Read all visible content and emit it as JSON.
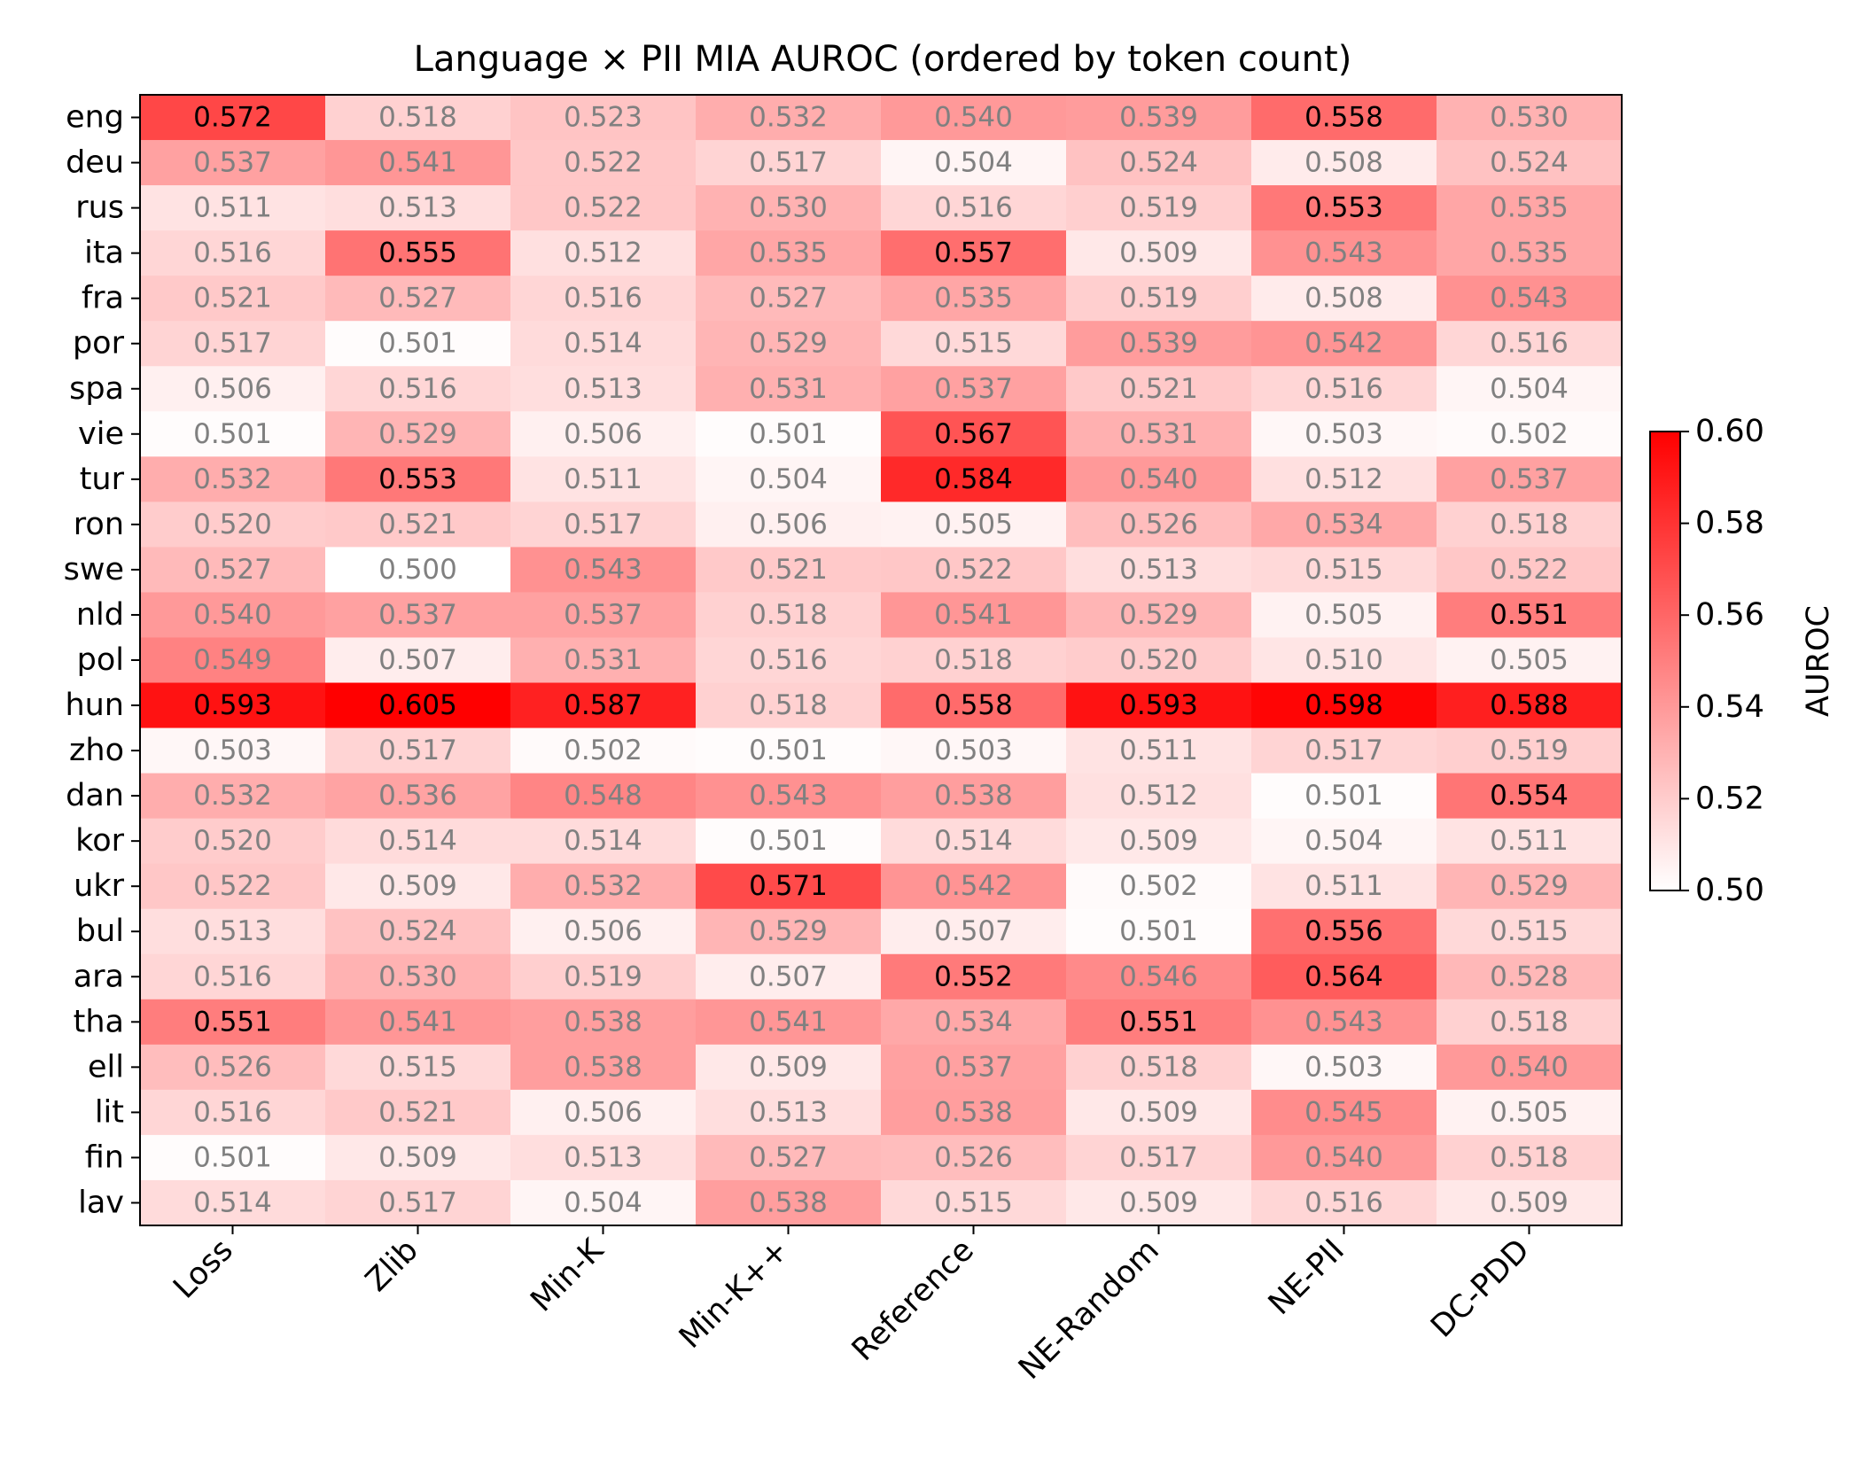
{
  "chart_data": {
    "type": "heatmap",
    "title": "Language × PII MIA AUROC (ordered by token count)",
    "rows": [
      "eng",
      "deu",
      "rus",
      "ita",
      "fra",
      "por",
      "spa",
      "vie",
      "tur",
      "ron",
      "swe",
      "nld",
      "pol",
      "hun",
      "zho",
      "dan",
      "kor",
      "ukr",
      "bul",
      "ara",
      "tha",
      "ell",
      "lit",
      "fin",
      "lav"
    ],
    "columns": [
      "Loss",
      "Zlib",
      "Min-K",
      "Min-K++",
      "Reference",
      "NE-Random",
      "NE-PII",
      "DC-PDD"
    ],
    "values": [
      [
        0.572,
        0.518,
        0.523,
        0.532,
        0.54,
        0.539,
        0.558,
        0.53
      ],
      [
        0.537,
        0.541,
        0.522,
        0.517,
        0.504,
        0.524,
        0.508,
        0.524
      ],
      [
        0.511,
        0.513,
        0.522,
        0.53,
        0.516,
        0.519,
        0.553,
        0.535
      ],
      [
        0.516,
        0.555,
        0.512,
        0.535,
        0.557,
        0.509,
        0.543,
        0.535
      ],
      [
        0.521,
        0.527,
        0.516,
        0.527,
        0.535,
        0.519,
        0.508,
        0.543
      ],
      [
        0.517,
        0.501,
        0.514,
        0.529,
        0.515,
        0.539,
        0.542,
        0.516
      ],
      [
        0.506,
        0.516,
        0.513,
        0.531,
        0.537,
        0.521,
        0.516,
        0.504
      ],
      [
        0.501,
        0.529,
        0.506,
        0.501,
        0.567,
        0.531,
        0.503,
        0.502
      ],
      [
        0.532,
        0.553,
        0.511,
        0.504,
        0.584,
        0.54,
        0.512,
        0.537
      ],
      [
        0.52,
        0.521,
        0.517,
        0.506,
        0.505,
        0.526,
        0.534,
        0.518
      ],
      [
        0.527,
        0.5,
        0.543,
        0.521,
        0.522,
        0.513,
        0.515,
        0.522
      ],
      [
        0.54,
        0.537,
        0.537,
        0.518,
        0.541,
        0.529,
        0.505,
        0.551
      ],
      [
        0.549,
        0.507,
        0.531,
        0.516,
        0.518,
        0.52,
        0.51,
        0.505
      ],
      [
        0.593,
        0.605,
        0.587,
        0.518,
        0.558,
        0.593,
        0.598,
        0.588
      ],
      [
        0.503,
        0.517,
        0.502,
        0.501,
        0.503,
        0.511,
        0.517,
        0.519
      ],
      [
        0.532,
        0.536,
        0.548,
        0.543,
        0.538,
        0.512,
        0.501,
        0.554
      ],
      [
        0.52,
        0.514,
        0.514,
        0.501,
        0.514,
        0.509,
        0.504,
        0.511
      ],
      [
        0.522,
        0.509,
        0.532,
        0.571,
        0.542,
        0.502,
        0.511,
        0.529
      ],
      [
        0.513,
        0.524,
        0.506,
        0.529,
        0.507,
        0.501,
        0.556,
        0.515
      ],
      [
        0.516,
        0.53,
        0.519,
        0.507,
        0.552,
        0.546,
        0.564,
        0.528
      ],
      [
        0.551,
        0.541,
        0.538,
        0.541,
        0.534,
        0.551,
        0.543,
        0.518
      ],
      [
        0.526,
        0.515,
        0.538,
        0.509,
        0.537,
        0.518,
        0.503,
        0.54
      ],
      [
        0.516,
        0.521,
        0.506,
        0.513,
        0.538,
        0.509,
        0.545,
        0.505
      ],
      [
        0.501,
        0.509,
        0.513,
        0.527,
        0.526,
        0.517,
        0.54,
        0.518
      ],
      [
        0.514,
        0.517,
        0.504,
        0.538,
        0.515,
        0.509,
        0.516,
        0.509
      ]
    ],
    "value_range": [
      0.5,
      0.6
    ],
    "colormap": [
      "#ffffff",
      "#ff0000"
    ],
    "highlight_threshold": 0.55,
    "text_color_normal": "#808080",
    "text_color_highlight": "#000000",
    "colorbar": {
      "label": "AUROC",
      "ticks": [
        "0.50",
        "0.52",
        "0.54",
        "0.56",
        "0.58",
        "0.60"
      ],
      "tick_values": [
        0.5,
        0.52,
        0.54,
        0.56,
        0.58,
        0.6
      ]
    }
  }
}
